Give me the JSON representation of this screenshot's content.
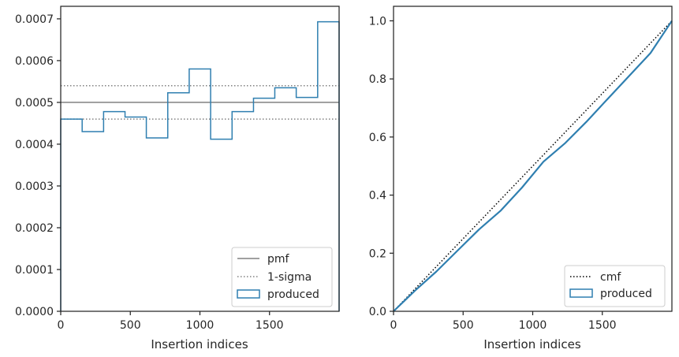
{
  "chart_data": [
    {
      "type": "histogram",
      "xlabel": "Insertion indices",
      "ylabel": "",
      "xlim": [
        0,
        2000
      ],
      "ylim": [
        0,
        0.00073
      ],
      "x_ticks": [
        {
          "value": 0,
          "label": "0"
        },
        {
          "value": 500,
          "label": "500"
        },
        {
          "value": 1000,
          "label": "1000"
        },
        {
          "value": 1500,
          "label": "1500"
        }
      ],
      "y_ticks": [
        {
          "value": 0,
          "label": "0.0000"
        },
        {
          "value": 0.0001,
          "label": "0.0001"
        },
        {
          "value": 0.0002,
          "label": "0.0002"
        },
        {
          "value": 0.0003,
          "label": "0.0003"
        },
        {
          "value": 0.0004,
          "label": "0.0004"
        },
        {
          "value": 0.0005,
          "label": "0.0005"
        },
        {
          "value": 0.0006,
          "label": "0.0006"
        },
        {
          "value": 0.0007,
          "label": "0.0007"
        }
      ],
      "bin_edges": [
        0,
        154,
        308,
        462,
        615,
        769,
        923,
        1077,
        1231,
        1385,
        1538,
        1692,
        1846,
        2000
      ],
      "values": [
        0.00046,
        0.00043,
        0.000478,
        0.000465,
        0.000415,
        0.000523,
        0.00058,
        0.000412,
        0.000478,
        0.00051,
        0.000535,
        0.000512,
        0.000693
      ],
      "pmf": 0.0005,
      "sigma_band": [
        0.00046,
        0.00054
      ],
      "legend_position": "lower-right",
      "legend": [
        {
          "label": "pmf",
          "style": "solid",
          "color": "#808080"
        },
        {
          "label": "1-sigma",
          "style": "dotted",
          "color": "#808080"
        },
        {
          "label": "produced",
          "style": "patch",
          "color": "#2f7fb0"
        }
      ]
    },
    {
      "type": "line",
      "xlabel": "Insertion indices",
      "ylabel": "",
      "xlim": [
        0,
        2000
      ],
      "ylim": [
        0,
        1.05
      ],
      "x_ticks": [
        {
          "value": 0,
          "label": "0"
        },
        {
          "value": 500,
          "label": "500"
        },
        {
          "value": 1000,
          "label": "1000"
        },
        {
          "value": 1500,
          "label": "1500"
        }
      ],
      "y_ticks": [
        {
          "value": 0,
          "label": "0.0"
        },
        {
          "value": 0.2,
          "label": "0.2"
        },
        {
          "value": 0.4,
          "label": "0.4"
        },
        {
          "value": 0.6,
          "label": "0.6"
        },
        {
          "value": 0.8,
          "label": "0.8"
        },
        {
          "value": 1.0,
          "label": "1.0"
        }
      ],
      "cmf": {
        "x": [
          0,
          2000
        ],
        "y": [
          0,
          1
        ]
      },
      "produced": {
        "x": [
          0,
          154,
          308,
          462,
          615,
          769,
          923,
          1077,
          1231,
          1385,
          1538,
          1692,
          1846,
          2000
        ],
        "y": [
          0,
          0.071,
          0.137,
          0.21,
          0.282,
          0.346,
          0.426,
          0.515,
          0.578,
          0.652,
          0.731,
          0.81,
          0.889,
          1.0
        ]
      },
      "legend_position": "lower-right",
      "legend": [
        {
          "label": "cmf",
          "style": "dotted",
          "color": "#000000"
        },
        {
          "label": "produced",
          "style": "patch",
          "color": "#2f7fb0"
        }
      ]
    }
  ]
}
